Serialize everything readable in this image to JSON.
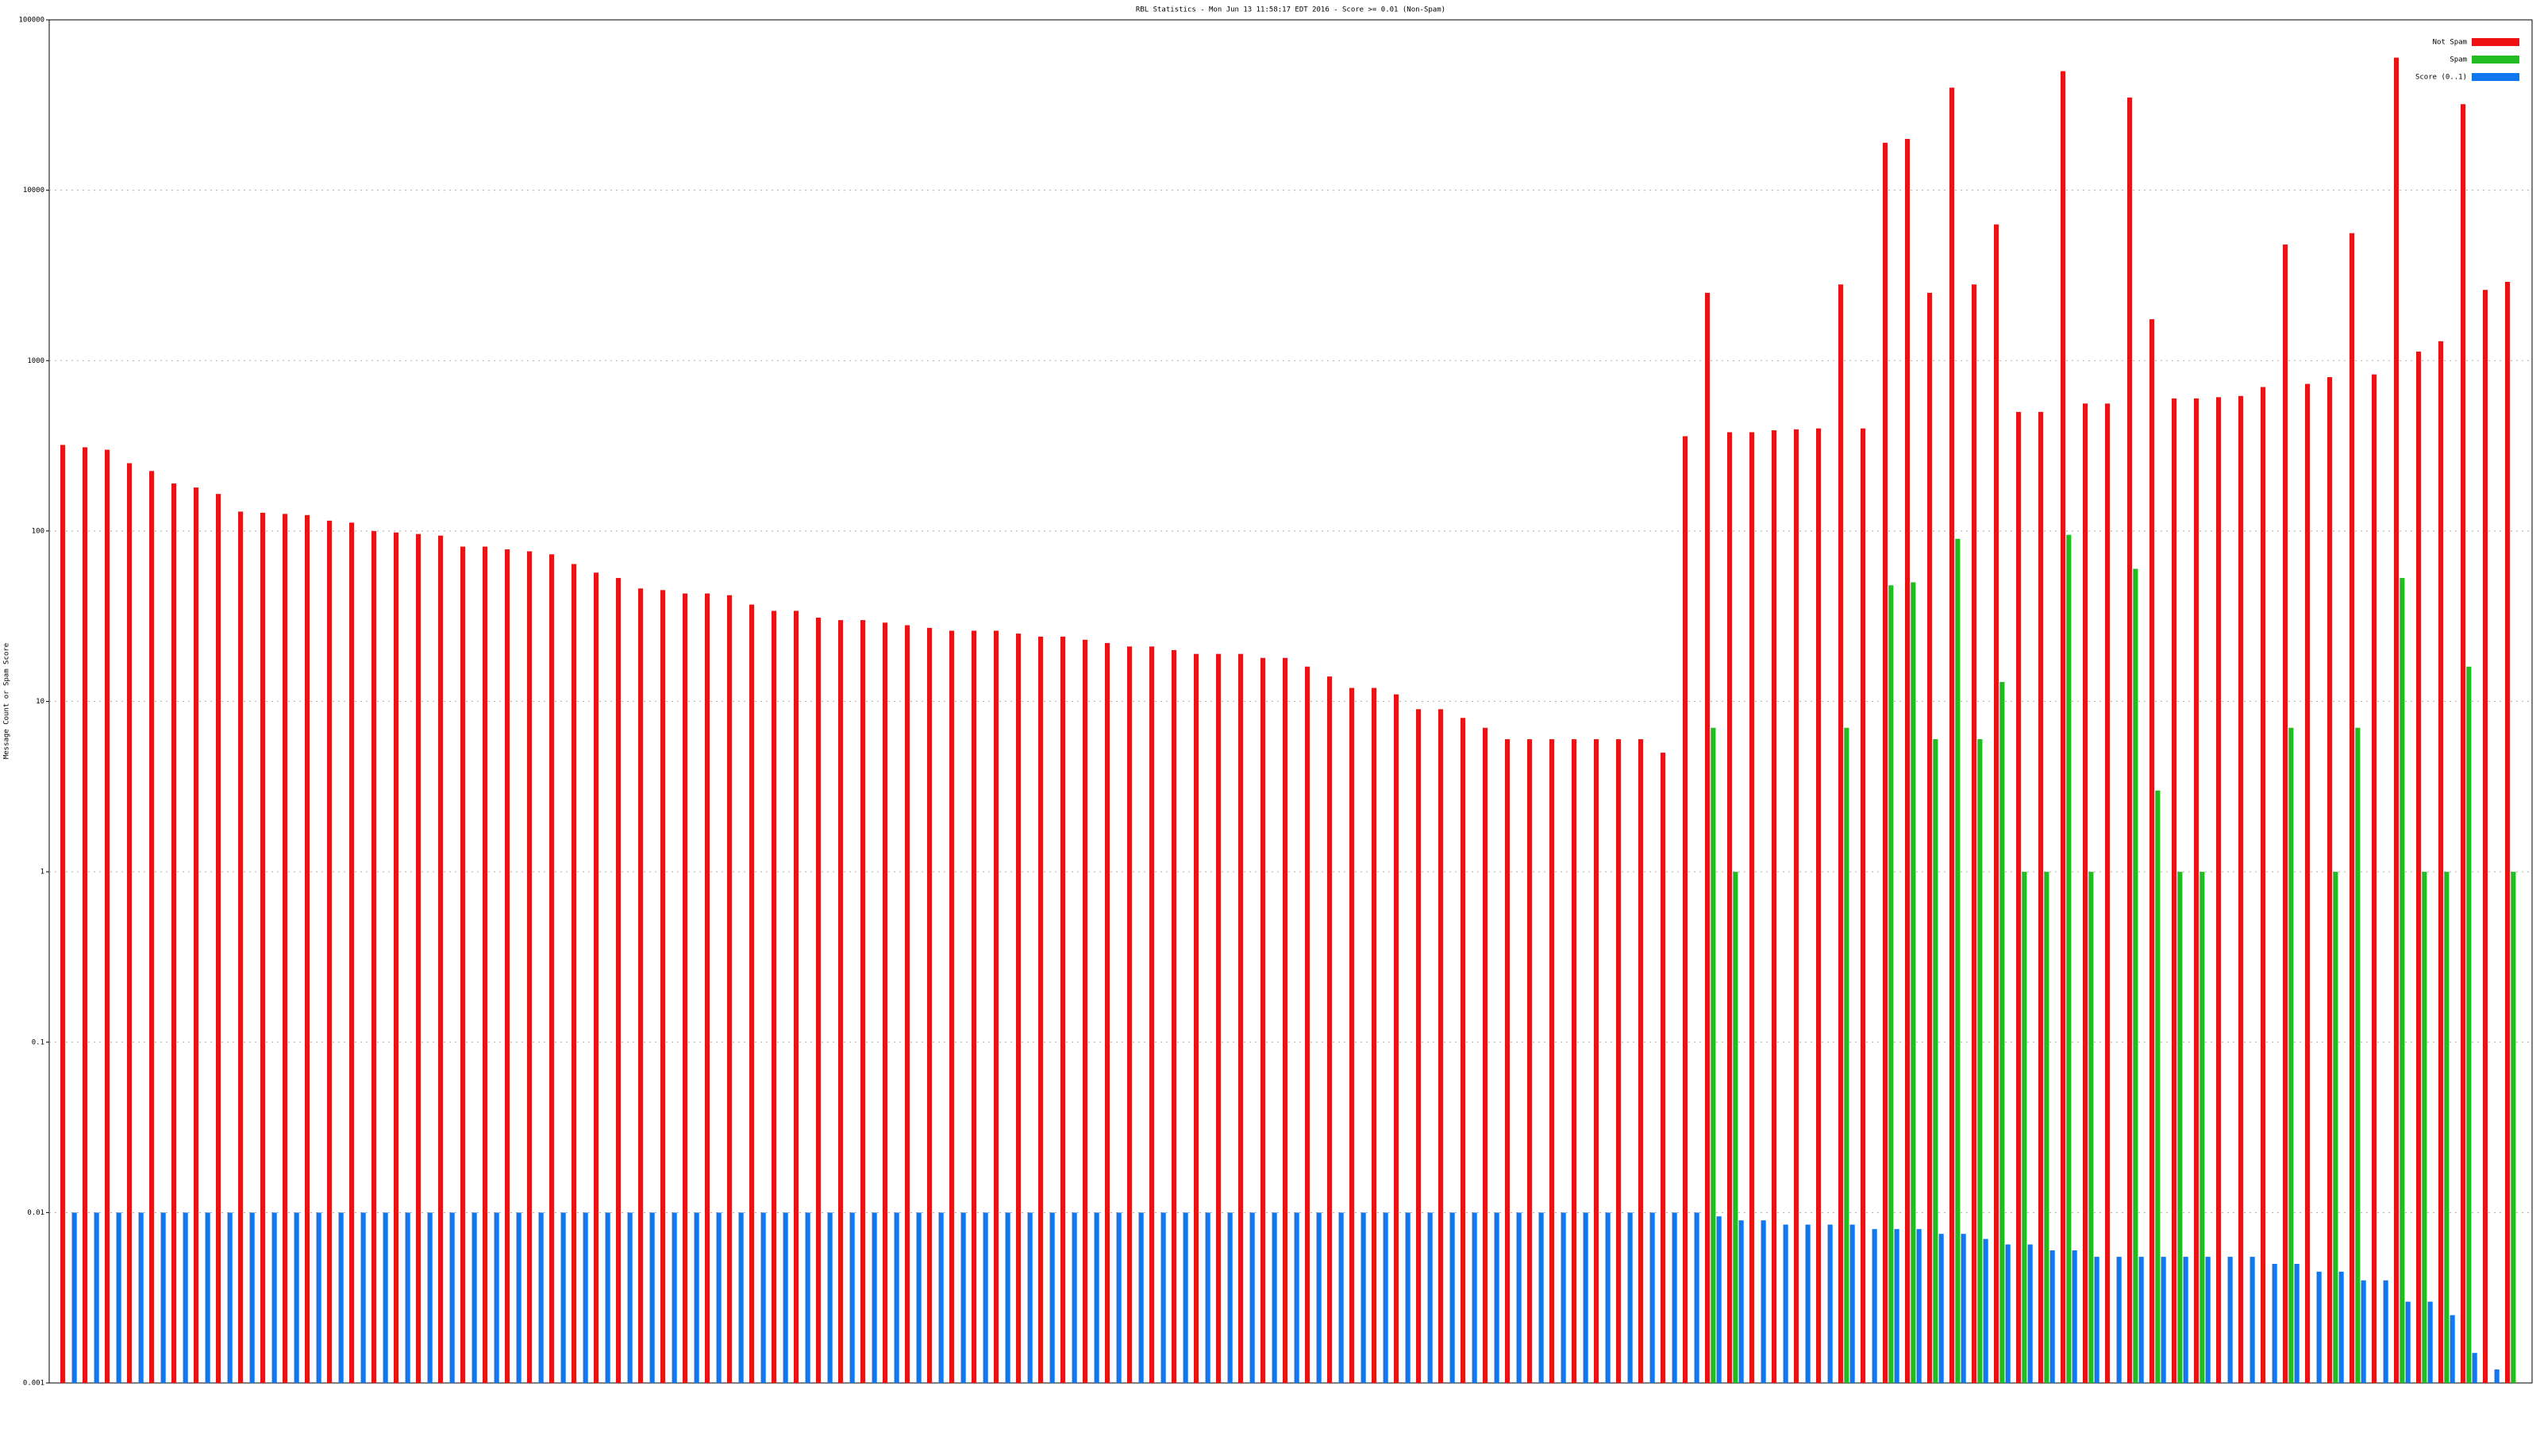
{
  "chart_data": {
    "type": "bar",
    "title": "RBL Statistics - Mon Jun 13 11:58:17 EDT 2016 - Score >= 0.01 (Non-Spam)",
    "y_label": "Message Count or Spam Score",
    "log_scale": true,
    "grid": true,
    "legend": "top-right",
    "ylim": [
      0.001,
      100000
    ],
    "yticks": [
      0.001,
      0.01,
      0.1,
      1,
      10,
      100,
      1000,
      10000,
      100000
    ],
    "categories": [
      null,
      null,
      null,
      null,
      null,
      null,
      null,
      null,
      null,
      null,
      null,
      null,
      null,
      null,
      null,
      null,
      null,
      null,
      null,
      null,
      null,
      null,
      null,
      null,
      null,
      null,
      null,
      null,
      null,
      null,
      null,
      null,
      null,
      null,
      null,
      null,
      null,
      null,
      null,
      null,
      null,
      null,
      null,
      null,
      null,
      null,
      null,
      null,
      null,
      null,
      null,
      null,
      null,
      null,
      null,
      null,
      null,
      null,
      null,
      null,
      null,
      null,
      null,
      null,
      null,
      null,
      null,
      null,
      null,
      null,
      null,
      null,
      null,
      null,
      null,
      null,
      null,
      null,
      null,
      null,
      null,
      null,
      null,
      null,
      null,
      null,
      null,
      null,
      null,
      null,
      null,
      null,
      null,
      null,
      null,
      null,
      null,
      null,
      null,
      null,
      null,
      null,
      null,
      null,
      null,
      null,
      null,
      null,
      null,
      null,
      null
    ],
    "series": [
      {
        "name": "Not Spam",
        "color": "#ee1111",
        "values": [
          320,
          310,
          300,
          250,
          225,
          190,
          180,
          165,
          130,
          128,
          126,
          124,
          115,
          112,
          100,
          98,
          96,
          94,
          81,
          81,
          78,
          76,
          73,
          64,
          57,
          53,
          46,
          45,
          43,
          43,
          42,
          37,
          34,
          34,
          31,
          30,
          30,
          29,
          28,
          27,
          26,
          26,
          26,
          25,
          24,
          24,
          23,
          22,
          21,
          21,
          20,
          19,
          19,
          19,
          18,
          18,
          16,
          14,
          12,
          12,
          11,
          9,
          9,
          8,
          7,
          6,
          6,
          6,
          6,
          6,
          6,
          6,
          5,
          360,
          2500,
          380,
          380,
          390,
          395,
          400,
          2800,
          400,
          19000,
          20000,
          2500,
          40000,
          2800,
          6300,
          500,
          500,
          50000,
          560,
          560,
          35000,
          1750,
          600,
          600,
          610,
          620,
          700,
          4800,
          730,
          800,
          5600,
          830,
          60000,
          1130,
          1300,
          32000,
          2600,
          2900
        ]
      },
      {
        "name": "Spam",
        "color": "#22bb22",
        "values": [
          null,
          null,
          null,
          null,
          null,
          null,
          null,
          null,
          null,
          null,
          null,
          null,
          null,
          null,
          null,
          null,
          null,
          null,
          null,
          null,
          null,
          null,
          null,
          null,
          null,
          null,
          null,
          null,
          null,
          null,
          null,
          null,
          null,
          null,
          null,
          null,
          null,
          null,
          null,
          null,
          null,
          null,
          null,
          null,
          null,
          null,
          null,
          null,
          null,
          null,
          null,
          null,
          null,
          null,
          null,
          null,
          null,
          null,
          null,
          null,
          null,
          null,
          null,
          null,
          null,
          null,
          null,
          null,
          null,
          null,
          null,
          null,
          null,
          null,
          7,
          1,
          null,
          null,
          null,
          null,
          7,
          null,
          48,
          50,
          6,
          90,
          6,
          13,
          1,
          1,
          95,
          1,
          null,
          60,
          3,
          1,
          1,
          null,
          null,
          null,
          7,
          null,
          1,
          7,
          null,
          53,
          1,
          1,
          16,
          null,
          1
        ]
      },
      {
        "name": "Score (0..1)",
        "color": "#1177ee",
        "values": [
          0.01,
          0.01,
          0.01,
          0.01,
          0.01,
          0.01,
          0.01,
          0.01,
          0.01,
          0.01,
          0.01,
          0.01,
          0.01,
          0.01,
          0.01,
          0.01,
          0.01,
          0.01,
          0.01,
          0.01,
          0.01,
          0.01,
          0.01,
          0.01,
          0.01,
          0.01,
          0.01,
          0.01,
          0.01,
          0.01,
          0.01,
          0.01,
          0.01,
          0.01,
          0.01,
          0.01,
          0.01,
          0.01,
          0.01,
          0.01,
          0.01,
          0.01,
          0.01,
          0.01,
          0.01,
          0.01,
          0.01,
          0.01,
          0.01,
          0.01,
          0.01,
          0.01,
          0.01,
          0.01,
          0.01,
          0.01,
          0.01,
          0.01,
          0.01,
          0.01,
          0.01,
          0.01,
          0.01,
          0.01,
          0.01,
          0.01,
          0.01,
          0.01,
          0.01,
          0.01,
          0.01,
          0.01,
          0.01,
          0.01,
          0.0095,
          0.009,
          0.009,
          0.0085,
          0.0085,
          0.0085,
          0.0085,
          0.008,
          0.008,
          0.008,
          0.0075,
          0.0075,
          0.007,
          0.0065,
          0.0065,
          0.006,
          0.006,
          0.0055,
          0.0055,
          0.0055,
          0.0055,
          0.0055,
          0.0055,
          0.0055,
          0.0055,
          0.005,
          0.005,
          0.0045,
          0.0045,
          0.004,
          0.004,
          0.003,
          0.003,
          0.0025,
          0.0015,
          0.0012,
          null
        ]
      }
    ]
  }
}
